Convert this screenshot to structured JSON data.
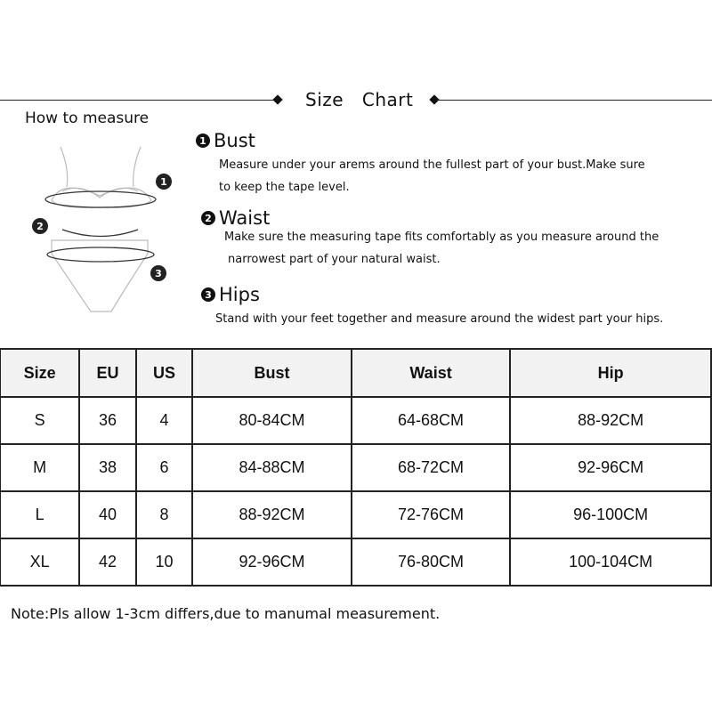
{
  "header": {
    "title": "Size Chart",
    "how_to_measure": "How to measure"
  },
  "sections": [
    {
      "number": "1",
      "title": "Bust",
      "lines": [
        "Measure under your arems around the fullest part of your bust.Make sure",
        "to keep the tape level."
      ]
    },
    {
      "number": "2",
      "title": "Waist",
      "lines": [
        "Make sure the measuring tape fits comfortably as you measure around the",
        "narrowest part of your natural waist."
      ]
    },
    {
      "number": "3",
      "title": "Hips",
      "lines": [
        "Stand with your feet together and measure around the widest part your hips."
      ]
    }
  ],
  "illustration": {
    "markers": [
      "1",
      "2",
      "3"
    ]
  },
  "table": {
    "columns": [
      "Size",
      "EU",
      "US",
      "Bust",
      "Waist",
      "Hip"
    ],
    "rows": [
      [
        "S",
        "36",
        "4",
        "80-84CM",
        "64-68CM",
        "88-92CM"
      ],
      [
        "M",
        "38",
        "6",
        "84-88CM",
        "68-72CM",
        "92-96CM"
      ],
      [
        "L",
        "40",
        "8",
        "88-92CM",
        "72-76CM",
        "96-100CM"
      ],
      [
        "XL",
        "42",
        "10",
        "92-96CM",
        "76-80CM",
        "100-104CM"
      ]
    ],
    "header_bg": "#f2f2f2"
  },
  "note": "Note:Pls allow 1-3cm differs,due to manumal measurement."
}
